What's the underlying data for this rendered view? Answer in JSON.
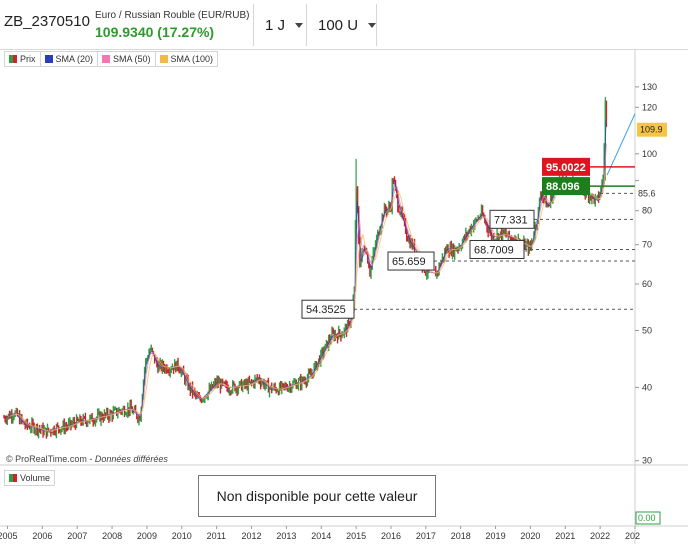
{
  "header": {
    "ticker": "ZB_2370510",
    "instrument_name": "Euro / Russian Rouble (EUR/RUB)",
    "price_change": "109.9340 (17.27%)",
    "period_select": "1 J",
    "units_select": "100 U"
  },
  "legend": {
    "items": [
      {
        "label": "Prix",
        "color": "#d3202d"
      },
      {
        "label": "SMA (20)",
        "color": "#2b3eb8"
      },
      {
        "label": "SMA (50)",
        "color": "#f07ab0"
      },
      {
        "label": "SMA (100)",
        "color": "#f2b84a"
      }
    ]
  },
  "credit": {
    "source": "© ProRealTime.com",
    "note": "Données différées"
  },
  "volume": {
    "label": "Volume",
    "message": "Non disponible pour cette valeur",
    "value_badge": "0.00"
  },
  "colors": {
    "up": "#2ea043",
    "down": "#d3202d",
    "badge_red": "#e0141e",
    "badge_green": "#1e7e1e",
    "badge_yellow": "#f6c544"
  },
  "chart_data": {
    "type": "line",
    "yscale": "log",
    "y_ticks": [
      30,
      40,
      50,
      60,
      70,
      80,
      90,
      100,
      120,
      130
    ],
    "y_tick_labels": [
      "30",
      "40",
      "50",
      "60",
      "70",
      "80",
      "",
      "100",
      "120",
      "130"
    ],
    "x_ticks": [
      "2005",
      "2006",
      "2007",
      "2008",
      "2009",
      "2010",
      "2011",
      "2012",
      "2013",
      "2014",
      "2015",
      "2016",
      "2017",
      "2018",
      "2019",
      "2020",
      "2021",
      "2022",
      "202"
    ],
    "x_range": [
      2004.9,
      2023.0
    ],
    "y_range": [
      29.5,
      140
    ],
    "series": [
      {
        "x": [
          2004.9,
          2005.2,
          2005.5,
          2005.8,
          2006.1,
          2006.4,
          2006.7,
          2007.0,
          2007.3,
          2007.6,
          2007.9,
          2008.2,
          2008.5,
          2008.8,
          2008.95,
          2009.1,
          2009.3,
          2009.6,
          2009.9,
          2010.2,
          2010.5,
          2010.8,
          2011.0,
          2011.3,
          2011.6,
          2011.9,
          2012.2,
          2012.5,
          2012.8,
          2013.1,
          2013.4,
          2013.7,
          2014.0,
          2014.3,
          2014.6,
          2014.8,
          2014.95,
          2015.0,
          2015.05,
          2015.1,
          2015.25,
          2015.4,
          2015.6,
          2015.8,
          2016.0,
          2016.05,
          2016.2,
          2016.5,
          2016.8,
          2017.0,
          2017.3,
          2017.6,
          2017.8,
          2018.0,
          2018.3,
          2018.6,
          2018.9,
          2019.2,
          2019.5,
          2019.8,
          2020.0,
          2020.2,
          2020.3,
          2020.5,
          2020.8,
          2021.0,
          2021.3,
          2021.6,
          2021.9,
          2022.0,
          2022.1,
          2022.15,
          2022.2
        ],
        "y": [
          35.5,
          36.2,
          34.5,
          34.2,
          33.6,
          34.1,
          34.3,
          34.9,
          35.2,
          35.6,
          35.9,
          36.5,
          36.8,
          35.5,
          44.0,
          46.5,
          43.5,
          43.2,
          43.6,
          40.1,
          38.0,
          39.5,
          40.8,
          39.9,
          40.2,
          40.4,
          41.4,
          39.9,
          39.7,
          40.3,
          40.8,
          41.9,
          45.3,
          49.0,
          49.5,
          51.0,
          58.0,
          88.5,
          78.0,
          65.0,
          70.0,
          63.0,
          72.0,
          80.0,
          81.0,
          92.0,
          82.0,
          71.5,
          66.8,
          63.0,
          62.5,
          69.0,
          68.5,
          70.0,
          75.0,
          79.0,
          72.0,
          73.0,
          71.8,
          70.0,
          69.0,
          78.0,
          86.0,
          81.0,
          90.0,
          88.5,
          89.0,
          86.0,
          83.0,
          85.6,
          92.0,
          123.0,
          109.9
        ]
      }
    ],
    "annotations": [
      {
        "label": "54.3525",
        "value": 54.3525
      },
      {
        "label": "65.659",
        "value": 65.659
      },
      {
        "label": "68.7009",
        "value": 68.7009
      },
      {
        "label": "77.331",
        "value": 77.331
      },
      {
        "label": "88.096",
        "value": 88.096,
        "style": "green"
      },
      {
        "label": "95.0022",
        "value": 95.0022,
        "style": "red"
      },
      {
        "label": "109.9",
        "value": 109.9,
        "style": "yellow"
      },
      {
        "label": "85.6",
        "value": 85.6
      }
    ]
  }
}
